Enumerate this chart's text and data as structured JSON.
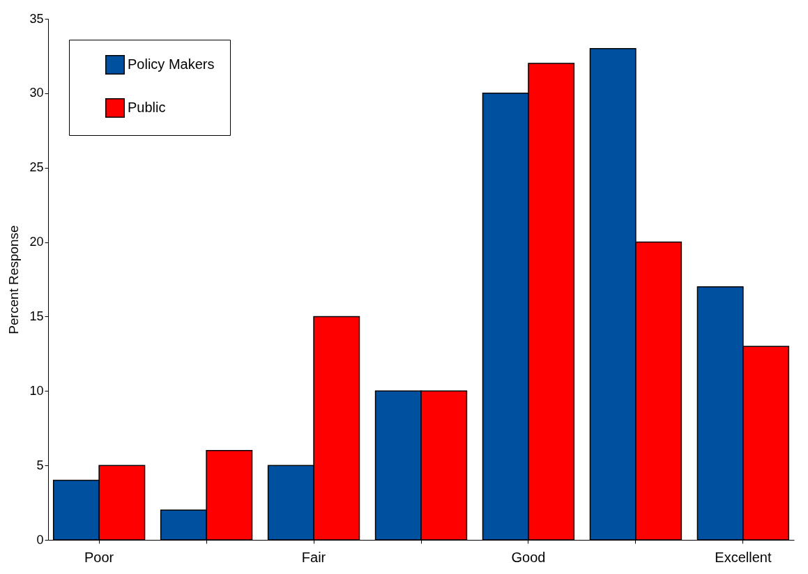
{
  "chart_data": {
    "type": "bar",
    "ylabel": "Percent Response",
    "categories": [
      "Poor",
      null,
      "Fair",
      null,
      "Good",
      null,
      "Excellent"
    ],
    "series": [
      {
        "name": "Policy Makers",
        "color": "#0050a0",
        "values": [
          4,
          2,
          5,
          10,
          30,
          33,
          17
        ]
      },
      {
        "name": "Public",
        "color": "#ff0000",
        "values": [
          5,
          6,
          15,
          10,
          32,
          20,
          13
        ]
      }
    ],
    "ylim": [
      0,
      35
    ],
    "yticks": [
      0,
      5,
      10,
      15,
      20,
      25,
      30,
      35
    ],
    "legend": "top left"
  }
}
